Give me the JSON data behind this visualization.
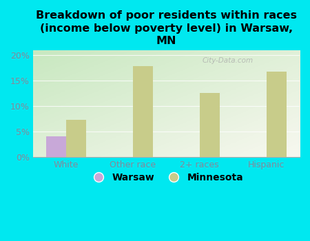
{
  "title": "Breakdown of poor residents within races\n(income below poverty level) in Warsaw,\nMN",
  "categories": [
    "White",
    "Other race",
    "2+ races",
    "Hispanic"
  ],
  "warsaw_values": [
    4.0,
    0.0,
    0.0,
    0.0
  ],
  "minnesota_values": [
    7.3,
    17.8,
    12.5,
    16.7
  ],
  "warsaw_color": "#c8a8d8",
  "minnesota_color": "#c8cc8a",
  "background_color": "#00e8f0",
  "plot_bg_top": "#f5f5ee",
  "plot_bg_bottom": "#c8e8c0",
  "ylim": [
    0,
    21
  ],
  "yticks": [
    0,
    5,
    10,
    15,
    20
  ],
  "ytick_labels": [
    "0%",
    "5%",
    "10%",
    "15%",
    "20%"
  ],
  "bar_width": 0.3,
  "title_fontsize": 11.5,
  "tick_fontsize": 9,
  "legend_fontsize": 10,
  "axis_label_color": "#888899",
  "watermark": "City-Data.com"
}
